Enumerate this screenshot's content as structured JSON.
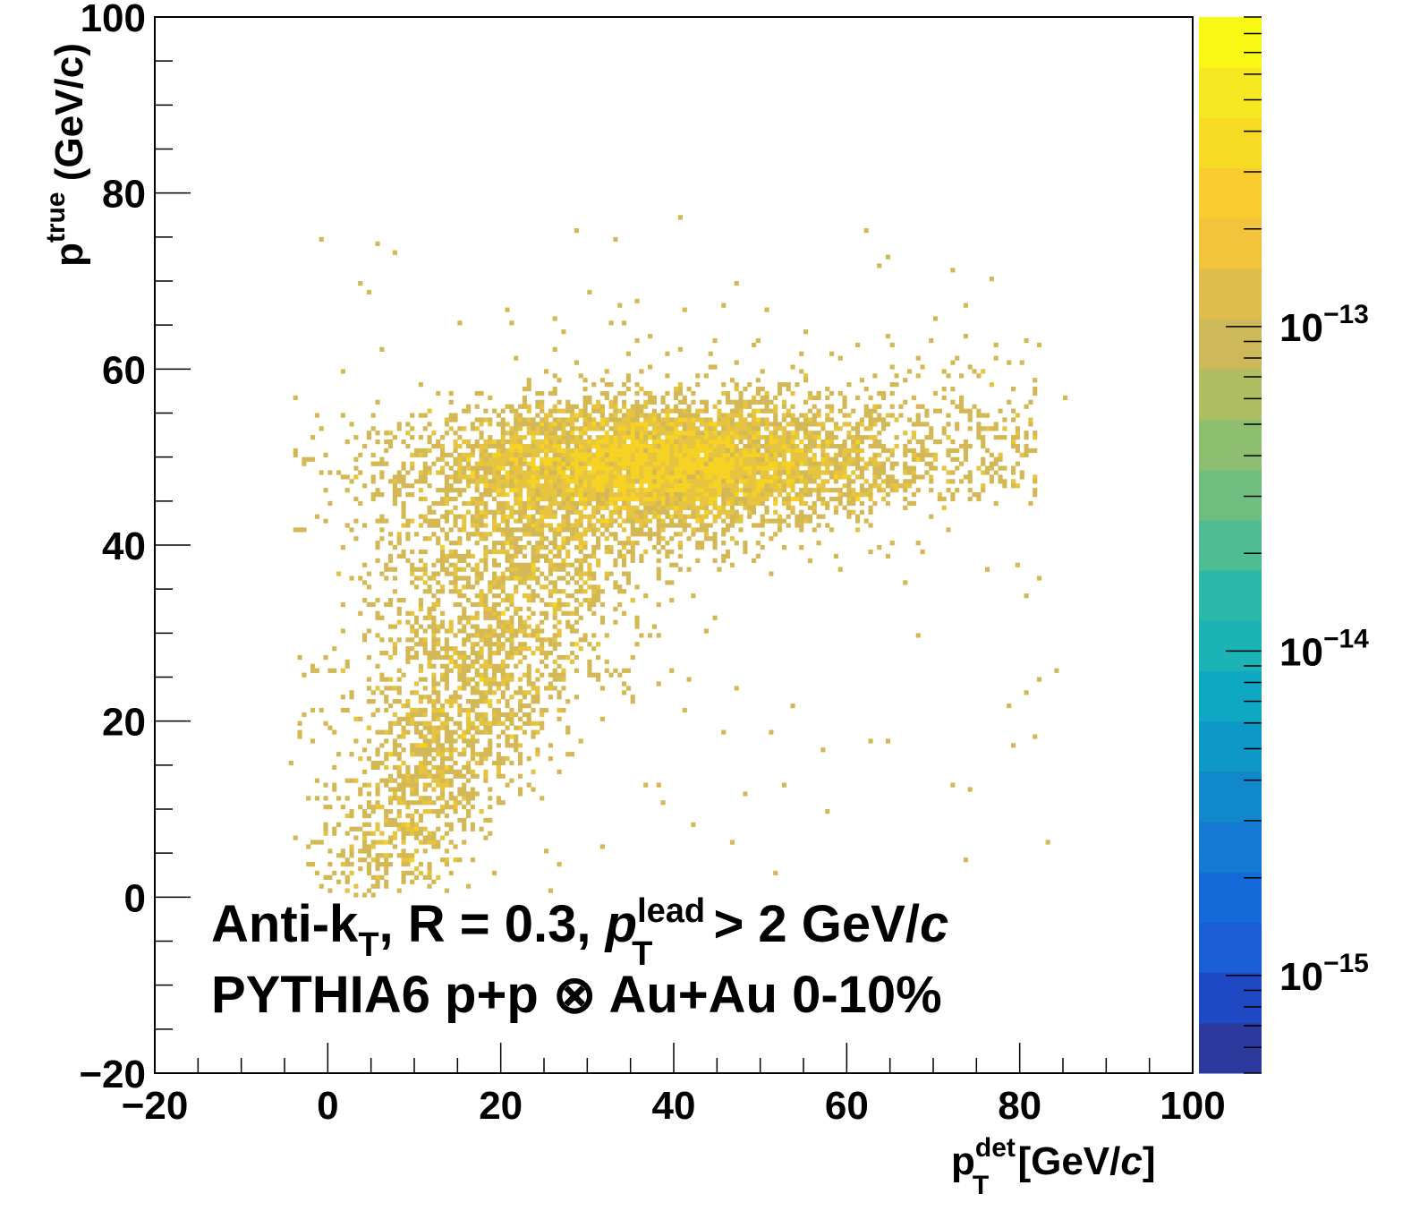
{
  "chart_data": {
    "type": "heatmap",
    "x_range": [
      -20,
      100
    ],
    "y_range": [
      -20,
      100
    ],
    "x_ticks": [
      "−20",
      "0",
      "20",
      "40",
      "60",
      "80",
      "100"
    ],
    "x_tick_values": [
      -20,
      0,
      20,
      40,
      60,
      80,
      100
    ],
    "y_ticks": [
      "−20",
      "0",
      "20",
      "40",
      "60",
      "80",
      "100"
    ],
    "y_tick_values": [
      -20,
      0,
      20,
      40,
      60,
      80,
      100
    ],
    "xlabel": {
      "base": "p",
      "sup": "det",
      "sub": "T",
      "rest": " [GeV/",
      "italic": "c",
      "close": "]"
    },
    "ylabel": {
      "base": "p",
      "sup": "true",
      "rest": " (GeV/c)"
    },
    "colorbar": {
      "scale": "log",
      "range": [
        5e-16,
        9e-13
      ],
      "tick_labels": [
        {
          "base": "10",
          "exp": "−13",
          "value": 1e-13
        },
        {
          "base": "10",
          "exp": "−14",
          "value": 1e-14
        },
        {
          "base": "10",
          "exp": "−15",
          "value": 1e-15
        }
      ],
      "palette": [
        "#2b3a9c",
        "#1f48c4",
        "#1a5ed6",
        "#146ad9",
        "#1479d2",
        "#1288cc",
        "#0d98c8",
        "#0ea8c4",
        "#1cb3b6",
        "#2bb8a8",
        "#4fbb92",
        "#6fbe80",
        "#8ebf70",
        "#afbd62",
        "#cdb85a",
        "#e0bc4e",
        "#f2c43c",
        "#f8cc2e",
        "#f6da24",
        "#f4e820",
        "#f9f714"
      ]
    },
    "distribution": {
      "description_values": "counts per (pT_det, pT_true) bin",
      "core": {
        "x_center": 38,
        "y_center": 49,
        "x_sigma": 13,
        "y_sigma": 3.5
      },
      "tail": {
        "x_from": 3,
        "x_to": 50,
        "y_from": 0,
        "y_to": 45
      },
      "high": {
        "x_from": 50,
        "x_to": 85,
        "y_from": 45,
        "y_to": 70
      },
      "dominant_color": "#d4b855",
      "peak_color": "#f6d224"
    },
    "annotations": [
      {
        "line1_a": "Anti-k",
        "line1_sub": "T",
        "line1_b": ", R = 0.3,  ",
        "line1_p": "p",
        "line1_sup": "lead",
        "line1_sub2": "T",
        "line1_c": " > 2 GeV/",
        "line1_it": "c"
      },
      {
        "text": "PYTHIA6 p+p  ⊗ Au+Au 0-10%"
      }
    ]
  }
}
